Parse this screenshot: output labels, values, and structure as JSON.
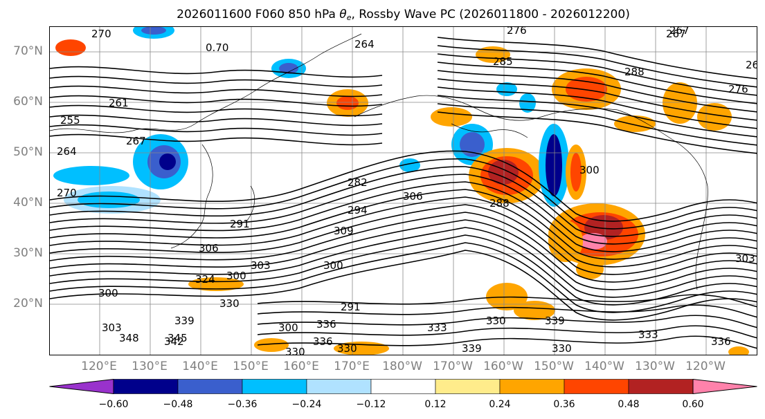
{
  "title_text": "2026011600 F060 850 hPa ",
  "title_theta": "θ",
  "title_sub": "e",
  "title_rest": ", Rossby Wave PC (2026011800 - 2026012200)",
  "lat_labels": [
    "70°N",
    "60°N",
    "50°N",
    "40°N",
    "30°N",
    "20°N"
  ],
  "lon_labels": [
    "120°E",
    "130°E",
    "140°E",
    "150°E",
    "160°E",
    "170°E",
    "180°W",
    "170°W",
    "160°W",
    "150°W",
    "140°W",
    "130°W",
    "120°W"
  ],
  "contour_labels": [
    "270",
    "0.70",
    "264",
    "276",
    "267",
    "264",
    "285",
    "276",
    "288",
    "267",
    "261",
    "255",
    "267",
    "264",
    "270",
    "282",
    "294",
    "291",
    "300",
    "309",
    "306",
    "303",
    "300",
    "324",
    "330",
    "336",
    "291",
    "300",
    "303",
    "300",
    "336",
    "330",
    "330",
    "339",
    "339",
    "345",
    "333",
    "330",
    "333",
    "336",
    "339",
    "342",
    "348",
    "330",
    "288",
    "300",
    "303",
    "306"
  ],
  "colorbar": {
    "colors": [
      "#9932cc",
      "#00008b",
      "#3a5fcd",
      "#00bfff",
      "#b0e2ff",
      "#ffffff",
      "#ffec8b",
      "#ffa500",
      "#ff4500",
      "#b22222",
      "#ff82ab"
    ],
    "tick_labels": [
      "−0.60",
      "−0.48",
      "−0.36",
      "−0.24",
      "−0.12",
      "0.12",
      "0.24",
      "0.36",
      "0.48",
      "0.60"
    ]
  }
}
